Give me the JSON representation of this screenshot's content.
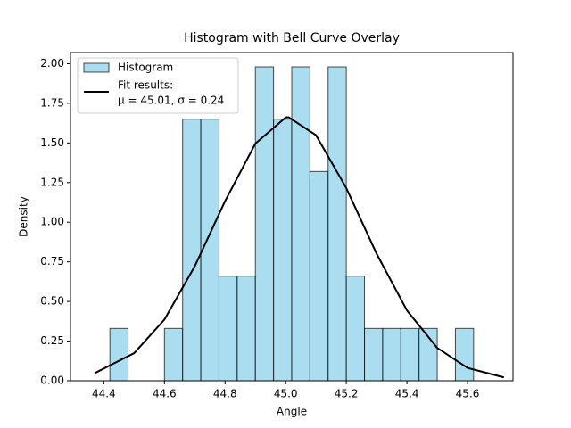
{
  "chart_data": {
    "type": "histogram",
    "title": "Histogram with Bell Curve Overlay",
    "x_label": "Angle",
    "y_label": "Density",
    "bins": [
      44.42,
      44.48,
      44.54,
      44.6,
      44.66,
      44.72,
      44.78,
      44.84,
      44.9,
      44.96,
      45.02,
      45.08,
      45.14,
      45.2,
      45.26,
      45.32,
      45.38,
      45.44,
      45.5,
      45.56,
      45.62
    ],
    "series": [
      {
        "name": "Histogram",
        "color": "#87ceeb",
        "values": [
          0.33,
          0,
          0,
          0.33,
          1.65,
          1.65,
          0.66,
          0.66,
          1.98,
          1.65,
          1.98,
          1.32,
          1.98,
          0.66,
          0.33,
          0.33,
          0.33,
          0.33,
          0,
          0.33
        ]
      },
      {
        "name": "Fit results:",
        "label_line2": "μ = 45.01, σ = 0.24",
        "color": "#000000",
        "x": [
          44.37,
          44.5,
          44.6,
          44.7,
          44.8,
          44.9,
          45.0,
          45.01,
          45.1,
          45.2,
          45.3,
          45.4,
          45.5,
          45.6,
          45.72
        ],
        "values": [
          0.048,
          0.174,
          0.386,
          0.722,
          1.133,
          1.496,
          1.661,
          1.662,
          1.549,
          1.215,
          0.801,
          0.444,
          0.207,
          0.081,
          0.021
        ]
      }
    ],
    "xlim": [
      44.29,
      45.75
    ],
    "ylim": [
      0,
      2.07
    ],
    "xticks": [
      44.4,
      44.6,
      44.8,
      {
        "value": 45,
        "label": "45.0"
      },
      45.2,
      45.4,
      45.6
    ],
    "yticks": [
      {
        "value": 0,
        "label": "0.00"
      },
      {
        "value": 0.25,
        "label": "0.25"
      },
      {
        "value": 0.5,
        "label": "0.50"
      },
      {
        "value": 0.75,
        "label": "0.75"
      },
      {
        "value": 1,
        "label": "1.00"
      },
      {
        "value": 1.25,
        "label": "1.25"
      },
      {
        "value": 1.5,
        "label": "1.50"
      },
      {
        "value": 1.75,
        "label": "1.75"
      },
      {
        "value": 2,
        "label": "2.00"
      }
    ],
    "legend": "upper left"
  }
}
